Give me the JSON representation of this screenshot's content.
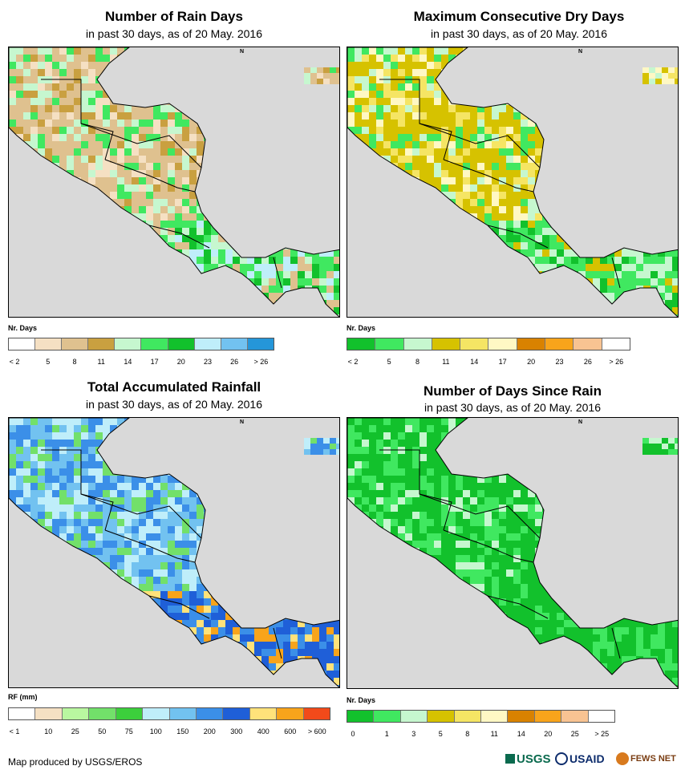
{
  "panels": [
    {
      "id": "rain-days",
      "title": "Number of Rain Days",
      "subtitle": "in past 30 days, as of 20 May. 2016",
      "legend_title": "Nr. Days",
      "legend_colors": [
        "#ffffff",
        "#f5e0c3",
        "#dfc18f",
        "#c9a040",
        "#c6f7cf",
        "#40e860",
        "#12c12c",
        "#bfeefa",
        "#72c2f0",
        "#2596d9"
      ],
      "legend_ticks": [
        "< 2",
        "5",
        "8",
        "11",
        "14",
        "17",
        "20",
        "23",
        "26",
        "> 26"
      ],
      "land_colors": [
        "#dfc18f",
        "#dfc18f",
        "#c9a040",
        "#c6f7cf",
        "#40e860",
        "#dfc18f",
        "#f5e0c3"
      ],
      "south_colors": [
        "#40e860",
        "#12c12c",
        "#c6f7cf",
        "#bfeefa",
        "#dfc18f",
        "#40e860"
      ]
    },
    {
      "id": "max-dry-days",
      "title": "Maximum Consecutive Dry Days",
      "subtitle": "in past 30 days, as of 20 May. 2016",
      "legend_title": "Nr. Days",
      "legend_colors": [
        "#12c12c",
        "#40e860",
        "#c6f7cf",
        "#d6c200",
        "#f5e564",
        "#fff8c4",
        "#d98200",
        "#f8a41b",
        "#f8c392",
        "#ffffff"
      ],
      "legend_ticks": [
        "< 2",
        "5",
        "8",
        "11",
        "14",
        "17",
        "20",
        "23",
        "26",
        "> 26"
      ],
      "land_colors": [
        "#d6c200",
        "#d6c200",
        "#f5e564",
        "#c6f7cf",
        "#d6c200",
        "#40e860",
        "#fff8c4"
      ],
      "south_colors": [
        "#40e860",
        "#c6f7cf",
        "#12c12c",
        "#c6f7cf",
        "#40e860",
        "#d6c200"
      ]
    },
    {
      "id": "total-rainfall",
      "title": "Total Accumulated Rainfall",
      "subtitle": "in past 30 days, as of 20 May. 2016",
      "legend_title": "RF (mm)",
      "legend_colors": [
        "#ffffff",
        "#f5e0c3",
        "#b9f7a0",
        "#72e06a",
        "#3ccf3c",
        "#bfeefa",
        "#72c2f0",
        "#3b8fe8",
        "#1f5fd8",
        "#ffe27a",
        "#f8a41b",
        "#f24a1a"
      ],
      "legend_ticks": [
        "< 1",
        "10",
        "25",
        "50",
        "75",
        "100",
        "150",
        "200",
        "300",
        "400",
        "600",
        "> 600"
      ],
      "land_colors": [
        "#72c2f0",
        "#3b8fe8",
        "#bfeefa",
        "#72c2f0",
        "#72e06a",
        "#3b8fe8",
        "#bfeefa"
      ],
      "south_colors": [
        "#1f5fd8",
        "#3b8fe8",
        "#f8a41b",
        "#1f5fd8",
        "#ffe27a",
        "#3b8fe8"
      ]
    },
    {
      "id": "days-since-rain",
      "title": "Number of Days Since Rain",
      "subtitle": "in past 30 days, as of 20 May. 2016",
      "legend_title": "Nr. Days",
      "legend_colors": [
        "#12c12c",
        "#40e860",
        "#c6f7cf",
        "#d6c200",
        "#f5e564",
        "#fff8c4",
        "#d98200",
        "#f8a41b",
        "#f8c392",
        "#ffffff"
      ],
      "legend_ticks": [
        "0",
        "1",
        "3",
        "5",
        "8",
        "11",
        "14",
        "20",
        "25",
        "> 25"
      ],
      "land_colors": [
        "#12c12c",
        "#12c12c",
        "#40e860",
        "#12c12c",
        "#c6f7cf",
        "#40e860",
        "#12c12c"
      ],
      "south_colors": [
        "#12c12c",
        "#12c12c",
        "#40e860",
        "#12c12c",
        "#12c12c",
        "#40e860"
      ]
    }
  ],
  "credit": "Map produced by USGS/EROS",
  "logos": {
    "usgs": "USGS",
    "usaid": "USAID",
    "fewsnet": "FEWS NET"
  },
  "north_marker": "N"
}
